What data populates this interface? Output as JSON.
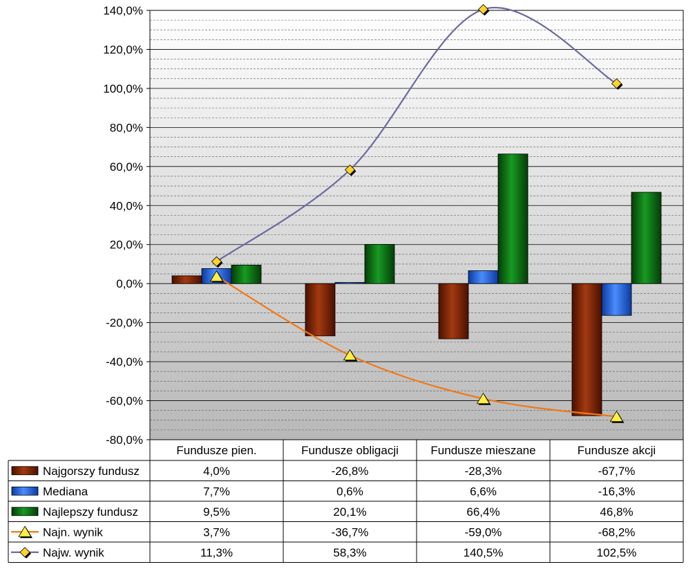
{
  "chart_data": {
    "type": "bar",
    "categories": [
      "Fundusze pien.",
      "Fundusze obligacji",
      "Fundusze mieszane",
      "Fundusze akcji"
    ],
    "yticks": [
      "140,0%",
      "120,0%",
      "100,0%",
      "80,0%",
      "60,0%",
      "40,0%",
      "20,0%",
      "0,0%",
      "-20,0%",
      "-40,0%",
      "-60,0%",
      "-80,0%"
    ],
    "ylim": [
      -80,
      140
    ],
    "grid": true,
    "legend": "data-table",
    "series": [
      {
        "name": "Najgorszy fundusz",
        "kind": "bar",
        "color": "#7a1e00",
        "values": [
          4.0,
          -26.8,
          -28.3,
          -67.7
        ],
        "labels": [
          "4,0%",
          "-26,8%",
          "-28,3%",
          "-67,7%"
        ]
      },
      {
        "name": "Mediana",
        "kind": "bar",
        "color": "#1f5fd6",
        "values": [
          7.7,
          0.6,
          6.6,
          -16.3
        ],
        "labels": [
          "7,7%",
          "0,6%",
          "6,6%",
          "-16,3%"
        ]
      },
      {
        "name": "Najlepszy fundusz",
        "kind": "bar",
        "color": "#0b6b12",
        "values": [
          9.5,
          20.1,
          66.4,
          46.8
        ],
        "labels": [
          "9,5%",
          "20,1%",
          "66,4%",
          "46,8%"
        ]
      },
      {
        "name": "Najn. wynik",
        "kind": "line",
        "marker": "triangle",
        "color": "#f07818",
        "marker_color": "#ffee44",
        "values": [
          3.7,
          -36.7,
          -59.0,
          -68.2
        ],
        "labels": [
          "3,7%",
          "-36,7%",
          "-59,0%",
          "-68,2%"
        ]
      },
      {
        "name": "Najw. wynik",
        "kind": "line",
        "marker": "diamond",
        "color": "#6a6aa0",
        "marker_color": "#ffd12a",
        "values": [
          11.3,
          58.3,
          140.5,
          102.5
        ],
        "labels": [
          "11,3%",
          "58,3%",
          "140,5%",
          "102,5%"
        ]
      }
    ]
  }
}
